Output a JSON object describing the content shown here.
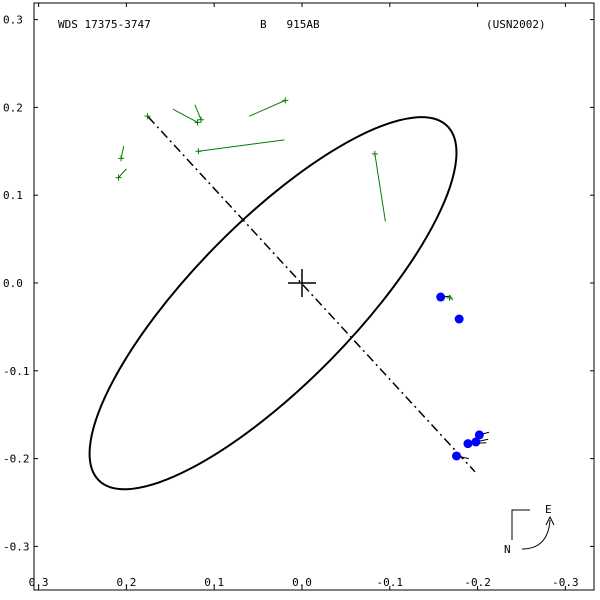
{
  "header": {
    "wds_id": "WDS 17375-3747",
    "discoverer": "B   915AB",
    "reference": "(USN2002)"
  },
  "compass": {
    "north": "N",
    "east": "E"
  },
  "colors": {
    "orbit": "#000000",
    "micrometric": "#008000",
    "interferometric": "#0000ff",
    "background": "#ffffff"
  },
  "chart_data": {
    "type": "scatter",
    "title": "",
    "xlabel": "",
    "ylabel": "",
    "xlim": [
      -0.3,
      0.3
    ],
    "ylim": [
      -0.3,
      0.3
    ],
    "xticks": [
      "-0.3",
      "-0.2",
      "-0.1",
      "0.0",
      "0.1",
      "0.2",
      "0.3"
    ],
    "yticks": [
      "-0.3",
      "-0.2",
      "-0.1",
      "0.0",
      "0.1",
      "0.2",
      "0.3"
    ],
    "grid": false,
    "orbit_ellipse": {
      "center": [
        0.033,
        -0.023
      ],
      "semi_major": 0.283,
      "semi_minor": 0.092,
      "angle_deg": 45.5
    },
    "line_of_nodes": [
      [
        0.175,
        0.189
      ],
      [
        -0.197,
        -0.215
      ]
    ],
    "primary": [
      0.0,
      0.0
    ],
    "micrometric_obs": [
      {
        "obs": [
          0.019,
          0.208
        ],
        "orbit": [
          0.06,
          0.19
        ]
      },
      {
        "obs": [
          0.118,
          0.15
        ],
        "orbit": [
          0.02,
          0.163
        ]
      },
      {
        "obs": [
          0.115,
          0.186
        ],
        "orbit": [
          0.122,
          0.203
        ]
      },
      {
        "obs": [
          0.119,
          0.183
        ],
        "orbit": [
          0.147,
          0.198
        ]
      },
      {
        "obs": [
          0.176,
          0.19
        ],
        "orbit": [
          0.175,
          0.189
        ]
      },
      {
        "obs": [
          0.206,
          0.142
        ],
        "orbit": [
          0.203,
          0.156
        ]
      },
      {
        "obs": [
          0.209,
          0.12
        ],
        "orbit": [
          0.2,
          0.13
        ]
      },
      {
        "obs": [
          -0.083,
          0.147
        ],
        "orbit": [
          -0.095,
          0.07
        ]
      },
      {
        "obs": [
          -0.168,
          -0.017
        ],
        "orbit": [
          -0.172,
          -0.019
        ]
      }
    ],
    "interferometric_obs": [
      {
        "obs": [
          -0.158,
          -0.016
        ],
        "orbit": [
          -0.17,
          -0.015
        ]
      },
      {
        "obs": [
          -0.179,
          -0.041
        ],
        "orbit": [
          -0.181,
          -0.04
        ]
      },
      {
        "obs": [
          -0.202,
          -0.173
        ],
        "orbit": [
          -0.213,
          -0.17
        ]
      },
      {
        "obs": [
          -0.198,
          -0.181
        ],
        "orbit": [
          -0.212,
          -0.178
        ]
      },
      {
        "obs": [
          -0.189,
          -0.183
        ],
        "orbit": [
          -0.21,
          -0.182
        ]
      },
      {
        "obs": [
          -0.176,
          -0.197
        ],
        "orbit": [
          -0.19,
          -0.2
        ]
      }
    ]
  }
}
